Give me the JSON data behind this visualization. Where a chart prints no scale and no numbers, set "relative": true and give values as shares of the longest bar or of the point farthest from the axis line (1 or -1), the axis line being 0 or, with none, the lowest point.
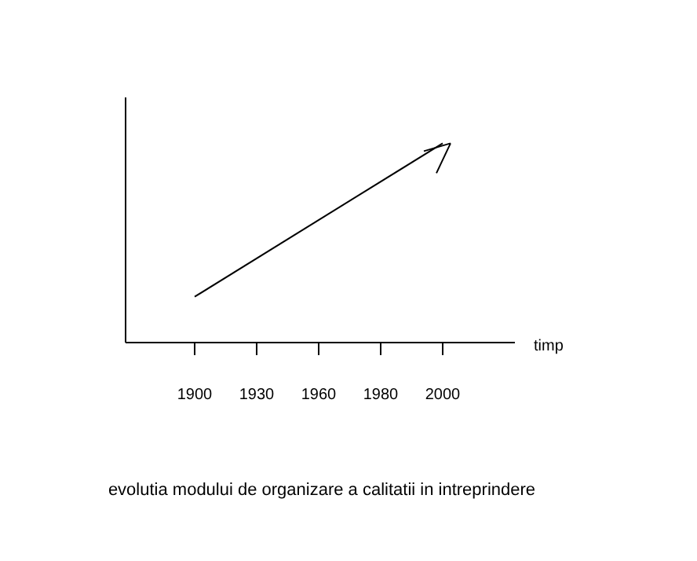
{
  "chart_data": {
    "type": "line",
    "title": "evolutia modului de organizare a calitatii in intreprindere",
    "xlabel": "timp",
    "categories": [
      "1900",
      "1930",
      "1960",
      "1980",
      "2000"
    ],
    "relative": true,
    "series": [
      {
        "color": "#000000",
        "values": [
          0.23,
          null,
          null,
          null,
          1
        ]
      }
    ],
    "grid": false,
    "legend": false,
    "line_style": "solid"
  }
}
